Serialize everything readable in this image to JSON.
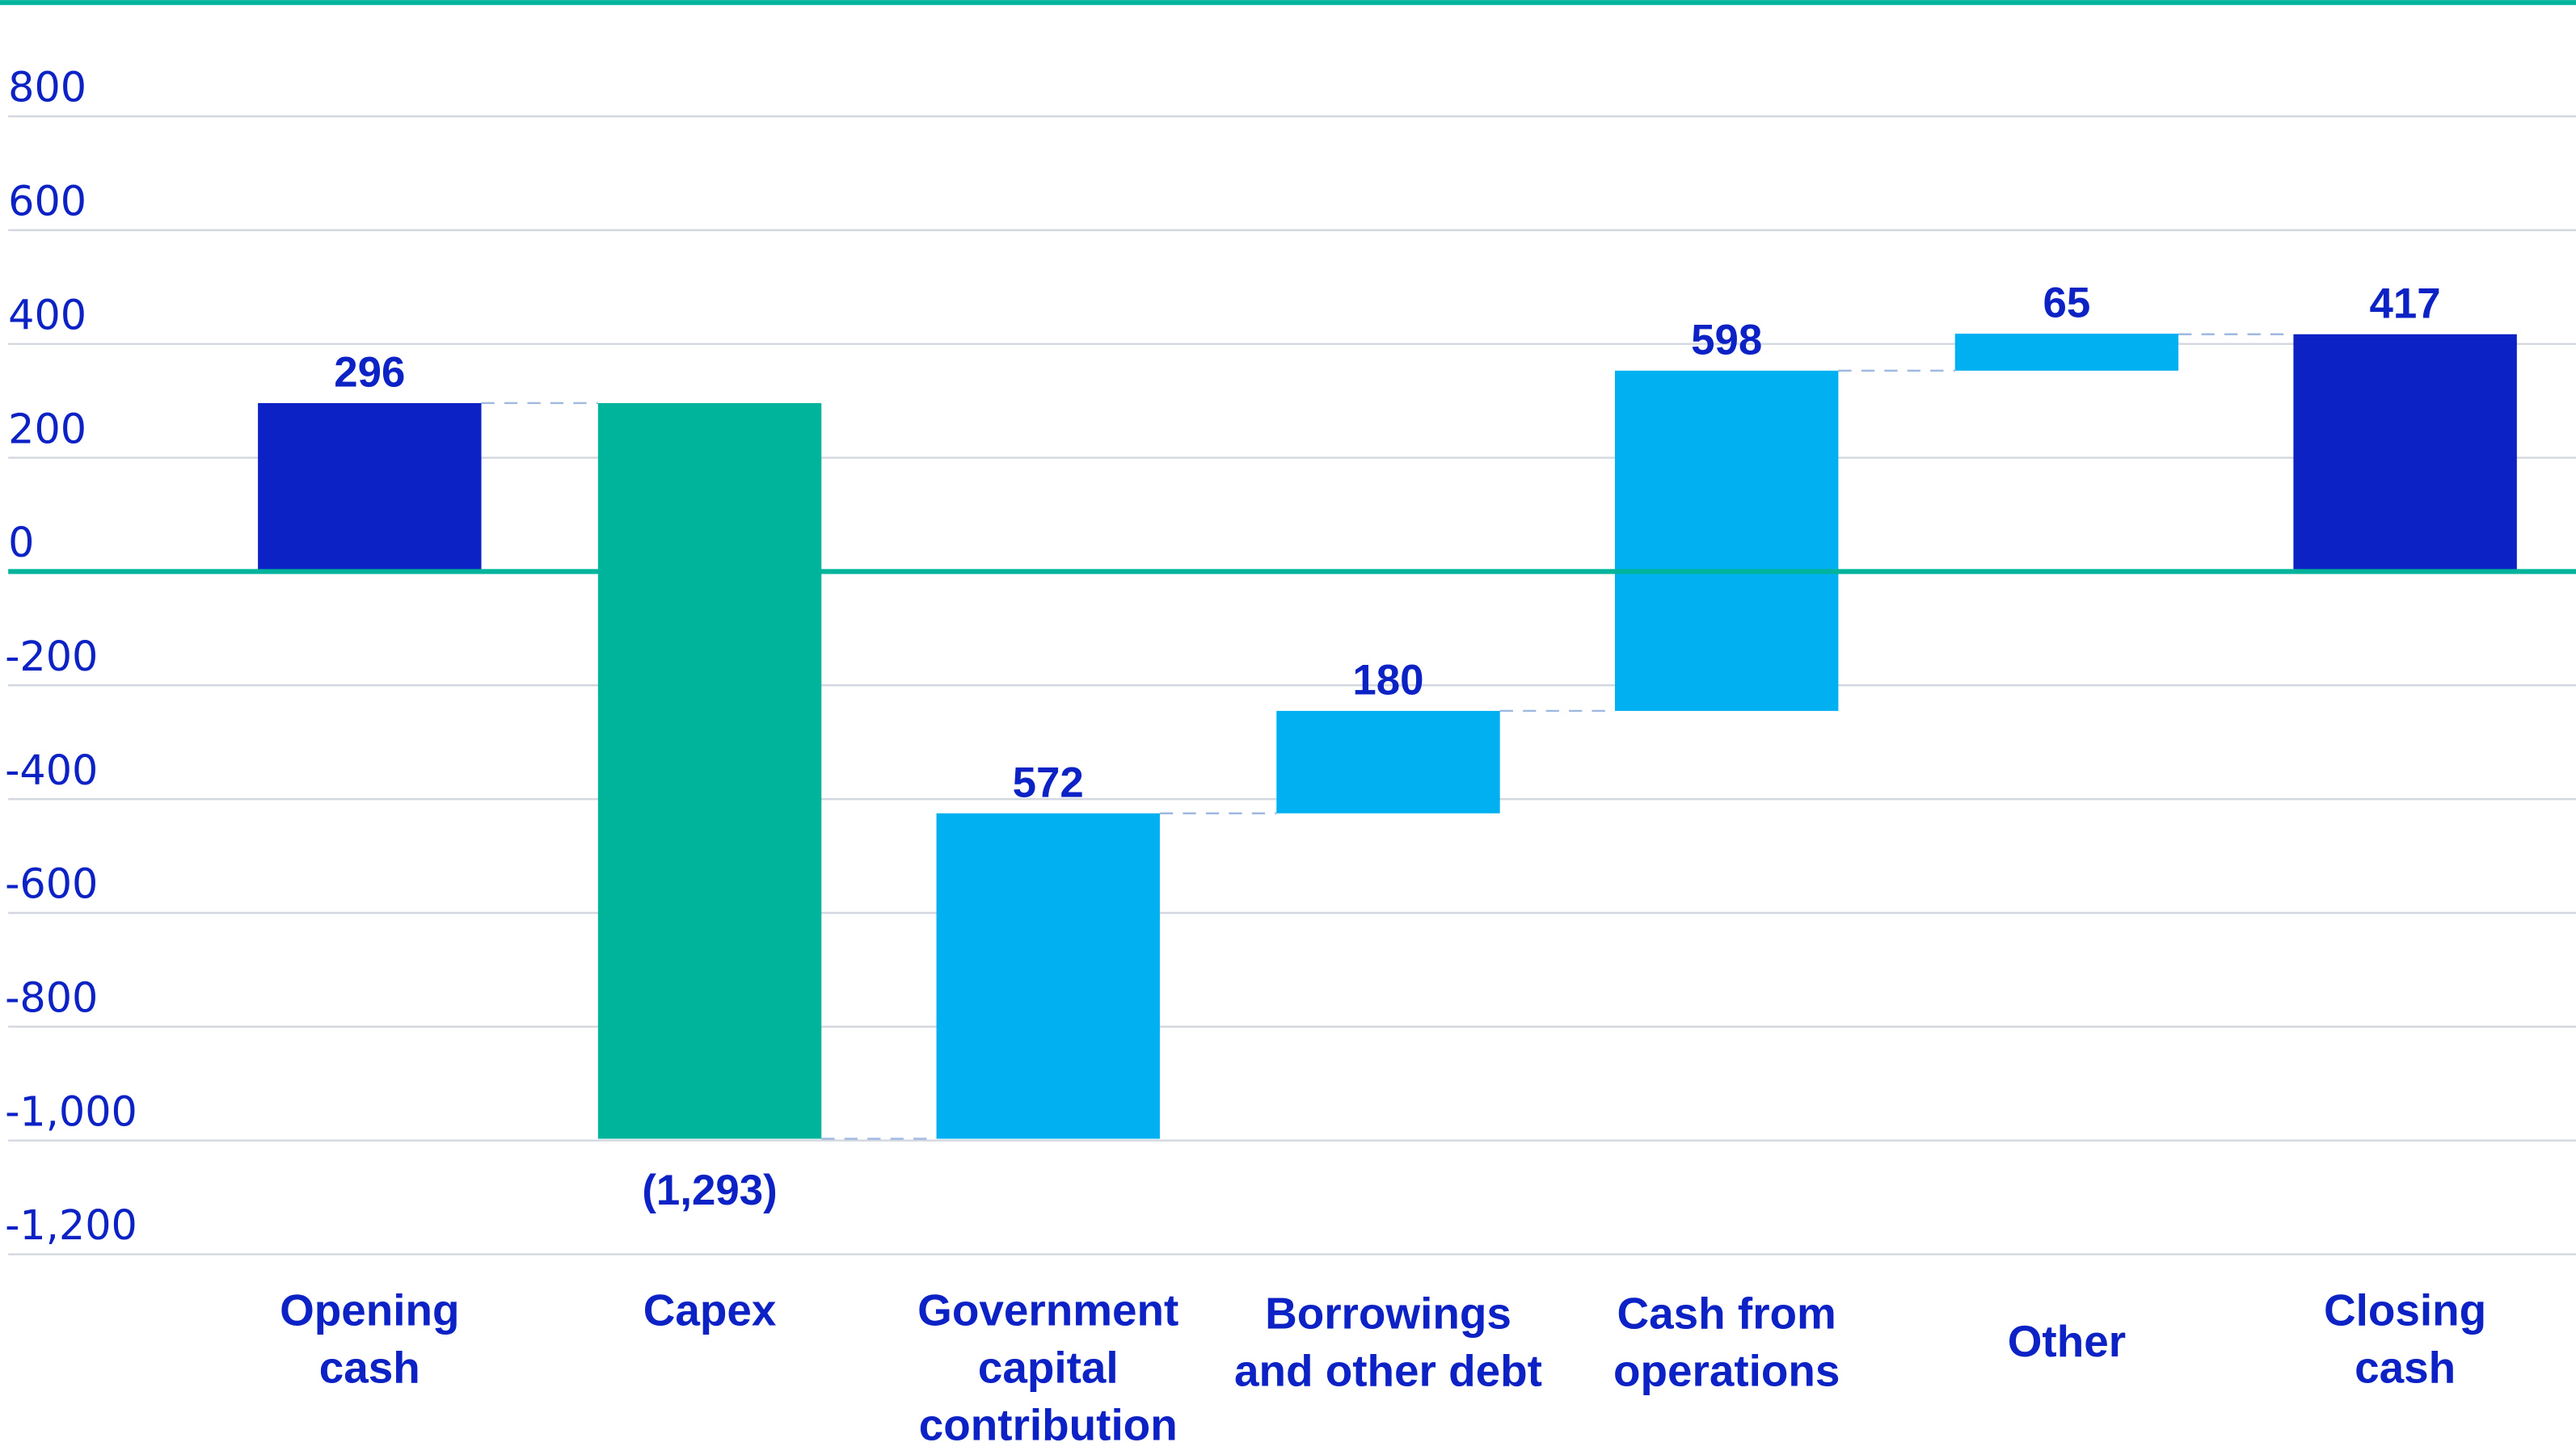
{
  "chart_data": {
    "type": "waterfall",
    "title": "",
    "xlabel": "",
    "ylabel": "",
    "ylim": [
      -1200,
      1000
    ],
    "yticks": [
      800,
      600,
      400,
      200,
      0,
      -200,
      -400,
      -600,
      -800,
      -1000,
      -1200
    ],
    "ytick_labels": [
      "800",
      "600",
      "400",
      "200",
      "0",
      "-200",
      "-400",
      "-600",
      "-800",
      "-1,000",
      "-1,200"
    ],
    "grid": true,
    "categories": [
      [
        "Opening",
        "cash"
      ],
      [
        "Capex"
      ],
      [
        "Government",
        "capital",
        "contribution"
      ],
      [
        "Borrowings",
        "and other debt"
      ],
      [
        "Cash from",
        "operations"
      ],
      [
        "Other"
      ],
      [
        "Closing",
        "cash"
      ]
    ],
    "values": [
      296,
      -1293,
      572,
      180,
      598,
      65,
      417
    ],
    "kinds": [
      "total",
      "decrease",
      "increase",
      "increase",
      "increase",
      "increase",
      "total"
    ],
    "data_labels": [
      "296",
      "(1,293)",
      "572",
      "180",
      "598",
      "65",
      "417"
    ],
    "colors": {
      "total": "#0c22c4",
      "decrease": "#00b39b",
      "increase": "#00b0f0",
      "axis_line": "#00b39b",
      "grid": "#d3d8e0",
      "connector": "#9fb8e0",
      "text": "#0c22c4"
    }
  }
}
